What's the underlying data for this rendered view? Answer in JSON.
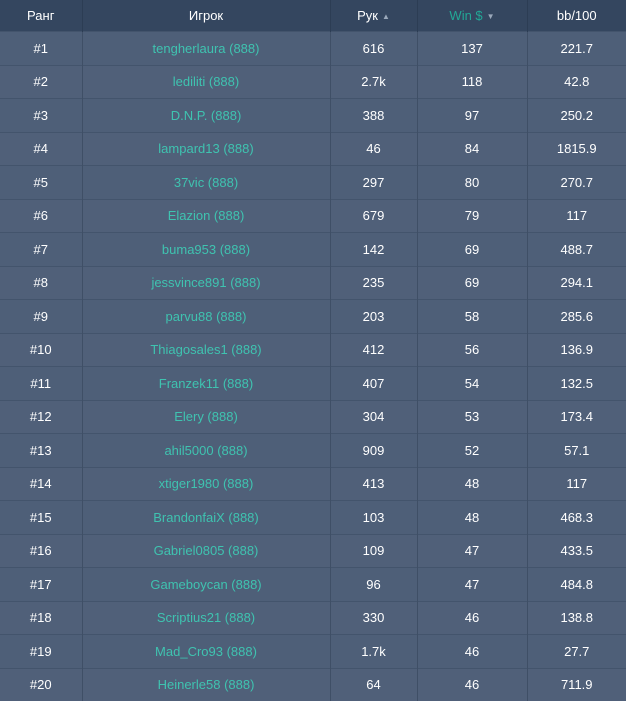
{
  "colors": {
    "header_bg": "#34465f",
    "row_bg": "#4f6079",
    "link": "#3fc3b0",
    "active_sort": "#22a896"
  },
  "headers": {
    "rank": "Ранг",
    "player": "Игрок",
    "hands": "Рук",
    "win": "Win $",
    "bb": "bb/100",
    "hands_arrow": "▲",
    "win_arrow": "▼"
  },
  "rows": [
    {
      "rank": "#1",
      "player": "tengherlaura (888)",
      "hands": "616",
      "win": "137",
      "bb": "221.7"
    },
    {
      "rank": "#2",
      "player": "lediliti (888)",
      "hands": "2.7k",
      "win": "118",
      "bb": "42.8"
    },
    {
      "rank": "#3",
      "player": "D.N.P. (888)",
      "hands": "388",
      "win": "97",
      "bb": "250.2"
    },
    {
      "rank": "#4",
      "player": "lampard13 (888)",
      "hands": "46",
      "win": "84",
      "bb": "1815.9"
    },
    {
      "rank": "#5",
      "player": "37vic (888)",
      "hands": "297",
      "win": "80",
      "bb": "270.7"
    },
    {
      "rank": "#6",
      "player": "Elazion (888)",
      "hands": "679",
      "win": "79",
      "bb": "117"
    },
    {
      "rank": "#7",
      "player": "buma953 (888)",
      "hands": "142",
      "win": "69",
      "bb": "488.7"
    },
    {
      "rank": "#8",
      "player": "jessvince891 (888)",
      "hands": "235",
      "win": "69",
      "bb": "294.1"
    },
    {
      "rank": "#9",
      "player": "parvu88 (888)",
      "hands": "203",
      "win": "58",
      "bb": "285.6"
    },
    {
      "rank": "#10",
      "player": "Thiagosales1 (888)",
      "hands": "412",
      "win": "56",
      "bb": "136.9"
    },
    {
      "rank": "#11",
      "player": "Franzek11 (888)",
      "hands": "407",
      "win": "54",
      "bb": "132.5"
    },
    {
      "rank": "#12",
      "player": "Elery (888)",
      "hands": "304",
      "win": "53",
      "bb": "173.4"
    },
    {
      "rank": "#13",
      "player": "ahil5000 (888)",
      "hands": "909",
      "win": "52",
      "bb": "57.1"
    },
    {
      "rank": "#14",
      "player": "xtiger1980 (888)",
      "hands": "413",
      "win": "48",
      "bb": "117"
    },
    {
      "rank": "#15",
      "player": "BrandonfaiX (888)",
      "hands": "103",
      "win": "48",
      "bb": "468.3"
    },
    {
      "rank": "#16",
      "player": "Gabriel0805 (888)",
      "hands": "109",
      "win": "47",
      "bb": "433.5"
    },
    {
      "rank": "#17",
      "player": "Gameboycan (888)",
      "hands": "96",
      "win": "47",
      "bb": "484.8"
    },
    {
      "rank": "#18",
      "player": "Scriptius21 (888)",
      "hands": "330",
      "win": "46",
      "bb": "138.8"
    },
    {
      "rank": "#19",
      "player": "Mad_Cro93 (888)",
      "hands": "1.7k",
      "win": "46",
      "bb": "27.7"
    },
    {
      "rank": "#20",
      "player": "Heinerle58 (888)",
      "hands": "64",
      "win": "46",
      "bb": "711.9"
    }
  ]
}
